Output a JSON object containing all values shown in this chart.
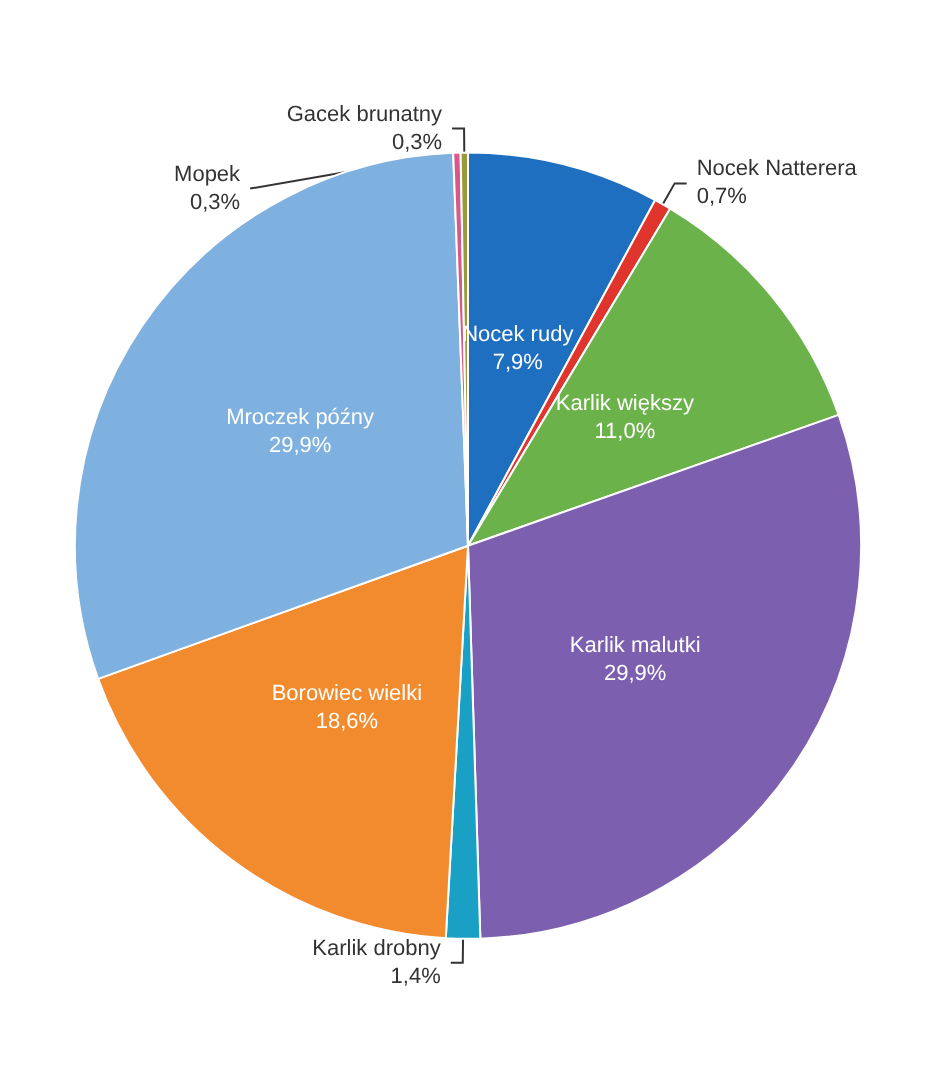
{
  "chart_data": {
    "type": "pie",
    "categories": [
      "Nocek rudy",
      "Nocek Natterera",
      "Karlik większy",
      "Karlik malutki",
      "Karlik drobny",
      "Borowiec wielki",
      "Mroczek późny",
      "Mopek",
      "Gacek brunatny"
    ],
    "values": [
      7.9,
      0.7,
      11.0,
      29.9,
      1.4,
      18.6,
      29.9,
      0.3,
      0.3
    ],
    "colors": [
      "#1f6fc0",
      "#e0352d",
      "#6cb24a",
      "#7c5fae",
      "#1aa0c4",
      "#f28a2e",
      "#7eb0e0",
      "#d9588a",
      "#9a9a3a"
    ],
    "value_labels": [
      "7,9%",
      "0,7%",
      "11,0%",
      "29,9%",
      "1,4%",
      "18,6%",
      "29,9%",
      "0,3%",
      "0,3%"
    ],
    "legend": false
  }
}
